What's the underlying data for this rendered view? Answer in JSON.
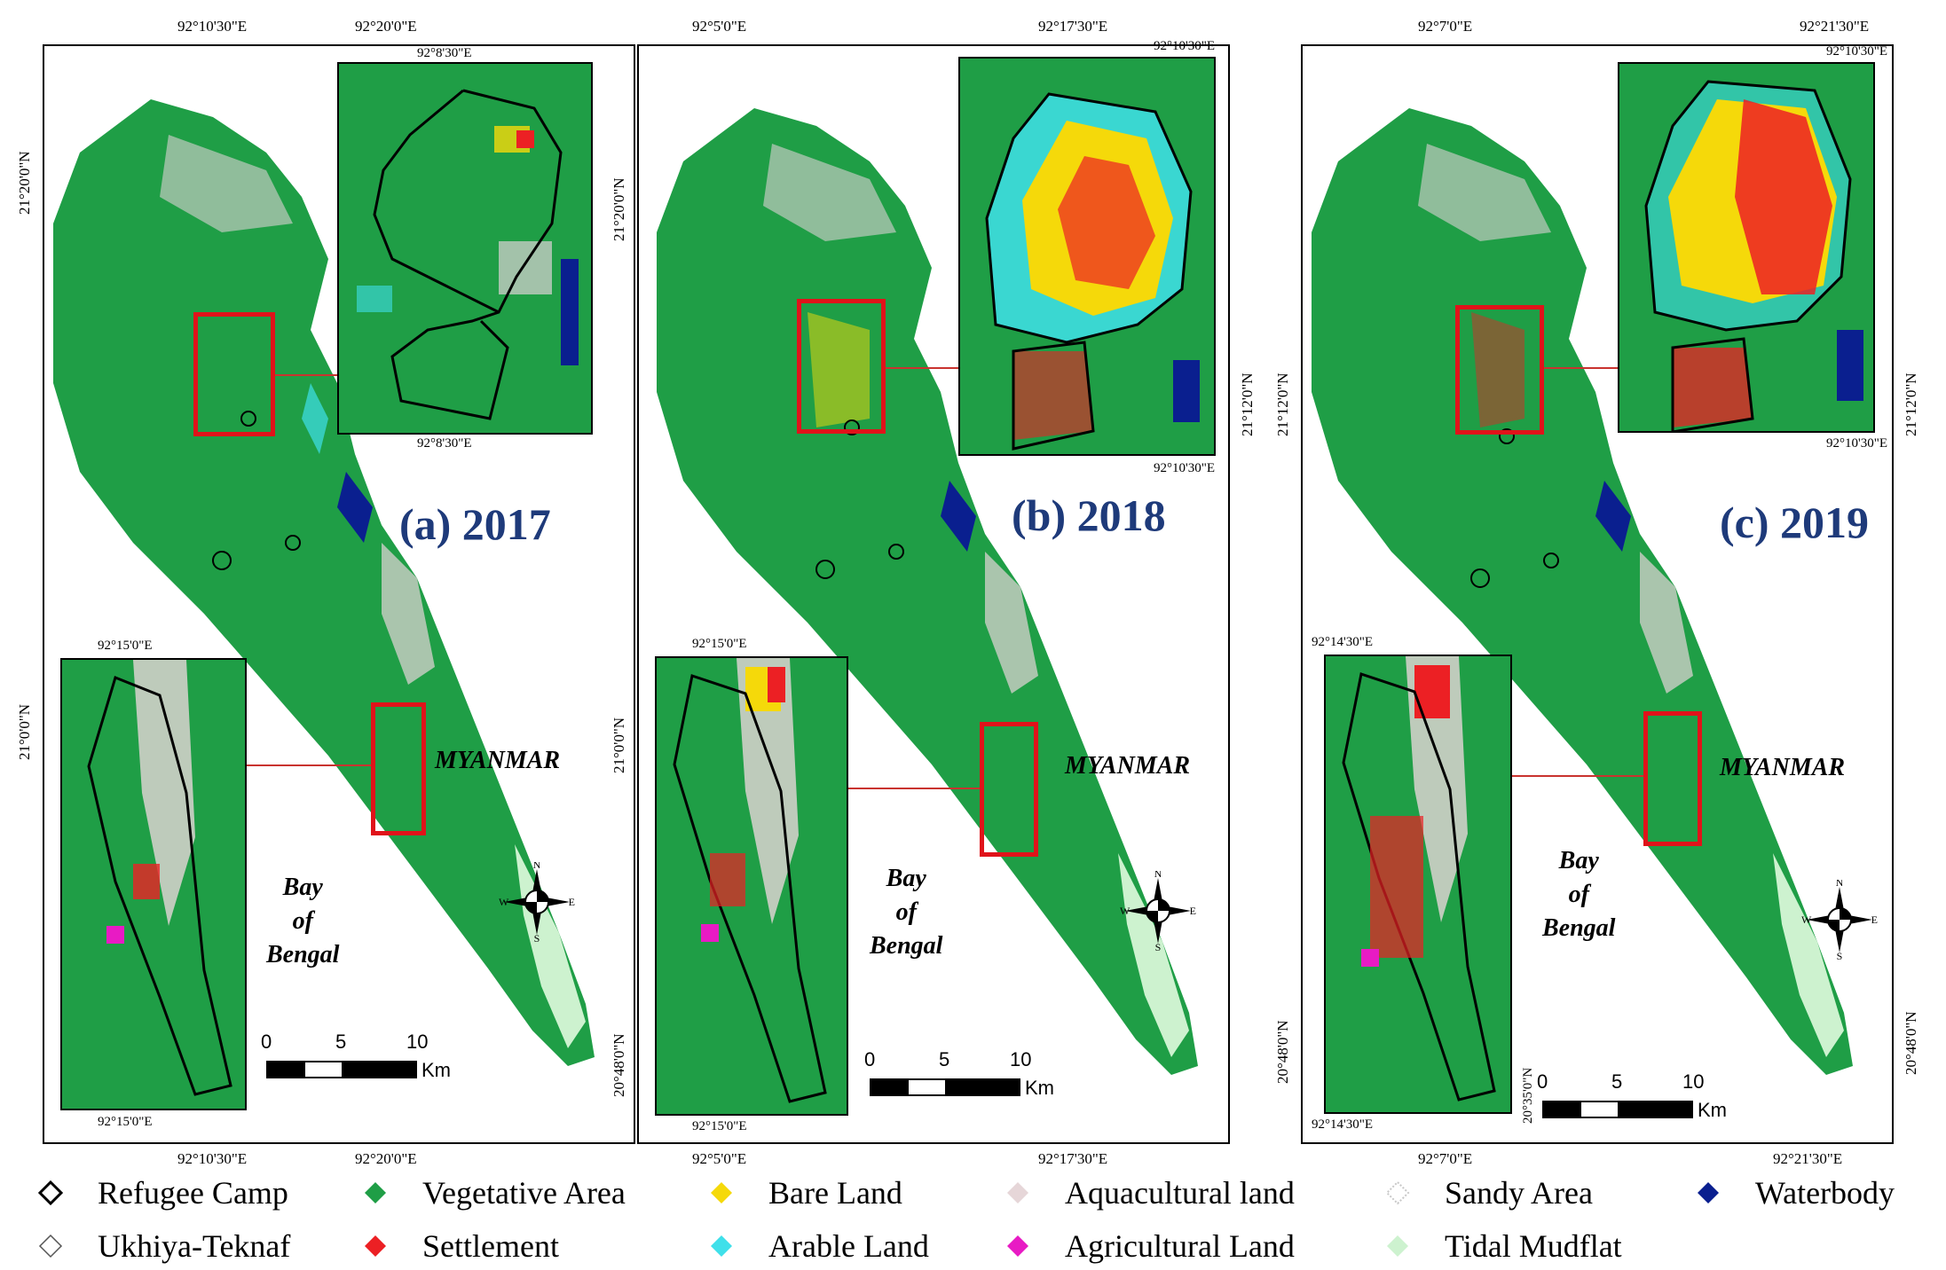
{
  "panels": [
    {
      "id": "a",
      "year_label": "(a) 2017",
      "top_coords": [
        "92°10'30\"E",
        "92°20'0\"E"
      ],
      "bottom_coords": [
        "92°10'30\"E",
        "92°20'0\"E"
      ],
      "left_coords": [
        "21°20'0\"N",
        "21°0'0\"N"
      ],
      "right_coords": [],
      "inset_top": {
        "top_label": "92°8'30\"E",
        "bottom_label": "92°8'30\"E"
      },
      "inset_bottom": {
        "top_label": "92°15'0\"E",
        "bottom_label": "92°15'0\"E"
      },
      "country_label": "MYANMAR",
      "sea_label": [
        "Bay",
        "of",
        "Bengal"
      ],
      "scale": {
        "ticks": [
          "0",
          "5",
          "10"
        ],
        "unit": "Km"
      },
      "north": {
        "n": "N",
        "s": "S",
        "e": "E",
        "w": "W"
      }
    },
    {
      "id": "b",
      "year_label": "(b) 2018",
      "top_coords": [
        "92°5'0\"E",
        "92°17'30\"E"
      ],
      "bottom_coords": [
        "92°5'0\"E",
        "92°17'30\"E"
      ],
      "left_coords": [
        "21°20'0\"N",
        "21°0'0\"N",
        "20°48'0\"N"
      ],
      "right_coords": [
        "21°12'0\"N"
      ],
      "inset_top": {
        "top_label": "92°10'30\"E",
        "bottom_label": "92°10'30\"E"
      },
      "inset_bottom": {
        "top_label": "92°15'0\"E",
        "bottom_label": "92°15'0\"E"
      },
      "country_label": "MYANMAR",
      "sea_label": [
        "Bay",
        "of",
        "Bengal"
      ],
      "scale": {
        "ticks": [
          "0",
          "5",
          "10"
        ],
        "unit": "Km"
      },
      "north": {
        "n": "N",
        "s": "S",
        "e": "E",
        "w": "W"
      }
    },
    {
      "id": "c",
      "year_label": "(c) 2019",
      "top_coords": [
        "92°7'0\"E",
        "92°21'30\"E"
      ],
      "bottom_coords": [
        "92°7'0\"E",
        "92°21'30\"E"
      ],
      "left_coords": [
        "21°12'0\"N",
        "20°48'0\"N",
        "20°35'0\"N"
      ],
      "right_coords": [
        "21°12'0\"N",
        "20°48'0\"N"
      ],
      "inset_top": {
        "top_label": "92°10'30\"E",
        "bottom_label": "92°10'30\"E"
      },
      "inset_bottom": {
        "top_label": "92°14'30\"E",
        "bottom_label": "92°14'30\"E"
      },
      "country_label": "MYANMAR",
      "sea_label": [
        "Bay",
        "of",
        "Bengal"
      ],
      "scale": {
        "ticks": [
          "0",
          "5",
          "10"
        ],
        "unit": "Km"
      },
      "north": {
        "n": "N",
        "s": "S",
        "e": "E",
        "w": "W"
      }
    }
  ],
  "legend": [
    {
      "label": "Refugee Camp",
      "symbol": "outline-diamond",
      "color": "#000000"
    },
    {
      "label": "Vegetative Area",
      "symbol": "diamond",
      "color": "#1f9e46"
    },
    {
      "label": "Bare Land",
      "symbol": "diamond",
      "color": "#f5d90a"
    },
    {
      "label": "Aquacultural land",
      "symbol": "diamond",
      "color": "#e6d6d8"
    },
    {
      "label": "Sandy Area",
      "symbol": "dotted-diamond",
      "color": "#c8c8c8"
    },
    {
      "label": "Waterbody",
      "symbol": "diamond",
      "color": "#0a1f8f"
    },
    {
      "label": "Ukhiya-Teknaf",
      "symbol": "thin-outline-diamond",
      "color": "#555555"
    },
    {
      "label": "Settlement",
      "symbol": "diamond",
      "color": "#ec2024"
    },
    {
      "label": "Arable Land",
      "symbol": "diamond",
      "color": "#3fe0ea"
    },
    {
      "label": "Agricultural Land",
      "symbol": "diamond",
      "color": "#e81bc4"
    },
    {
      "label": "Tidal Mudflat",
      "symbol": "diamond",
      "color": "#cdf2cf"
    }
  ],
  "colors": {
    "vegetation": "#1f9e46",
    "settlement": "#ec2024",
    "bare": "#f5d90a",
    "arable": "#3fe0ea",
    "aqua": "#e6d6d8",
    "water": "#0a1f8f",
    "mudflat": "#cdf2cf",
    "agri": "#e81bc4",
    "year_text": "#1e3a7a",
    "frame_red": "#e0131a"
  }
}
